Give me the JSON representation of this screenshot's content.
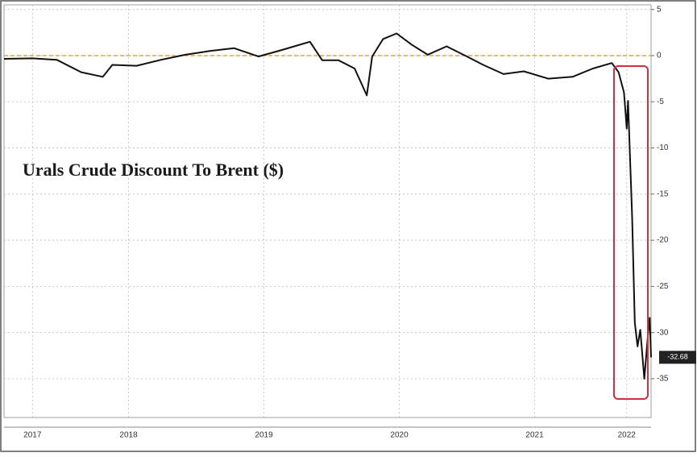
{
  "chart_data": {
    "type": "line",
    "title": "Urals Crude Discount To Brent ($)",
    "x": [
      2017.58,
      2017.79,
      2017.97,
      2018.15,
      2018.31,
      2018.38,
      2018.56,
      2018.74,
      2018.92,
      2019.1,
      2019.28,
      2019.46,
      2019.63,
      2019.84,
      2019.93,
      2020.05,
      2020.17,
      2020.26,
      2020.3,
      2020.38,
      2020.48,
      2020.59,
      2020.71,
      2020.85,
      2021.0,
      2021.12,
      2021.27,
      2021.42,
      2021.6,
      2021.78,
      2021.93,
      2022.07,
      2022.12,
      2022.16,
      2022.18,
      2022.19,
      2022.22,
      2022.24,
      2022.26,
      2022.28,
      2022.31,
      2022.34,
      2022.35,
      2022.36
    ],
    "values": [
      -0.35,
      -0.3,
      -0.45,
      -1.8,
      -2.3,
      -1.0,
      -1.1,
      -0.45,
      0.1,
      0.5,
      0.8,
      -0.1,
      0.6,
      1.5,
      -0.5,
      -0.5,
      -1.4,
      -4.3,
      -0.1,
      1.8,
      2.4,
      1.2,
      0.1,
      1.0,
      -0.1,
      -1.0,
      -2.0,
      -1.7,
      -2.5,
      -2.3,
      -1.4,
      -0.8,
      -1.8,
      -4.0,
      -7.9,
      -4.9,
      -17.5,
      -28.9,
      -31.5,
      -29.7,
      -35,
      -29.8,
      -28.4,
      -32.68
    ],
    "color": "#111111",
    "xlim": [
      2017.58,
      2022.36
    ],
    "xticks": [
      {
        "value": 2017.79,
        "label": "2017"
      },
      {
        "value": 2018.5,
        "label": "2018"
      },
      {
        "value": 2019.5,
        "label": "2019"
      },
      {
        "value": 2020.5,
        "label": "2020"
      },
      {
        "value": 2021.5,
        "label": "2021"
      },
      {
        "value": 2022.18,
        "label": "2022"
      }
    ],
    "ylim": [
      -39.2,
      5.5
    ],
    "yticks": [
      5,
      0,
      -5,
      -10,
      -15,
      -20,
      -25,
      -30,
      -35
    ],
    "reference_line": {
      "value": 0,
      "color": "#f0a030"
    },
    "grid": true
  }
}
